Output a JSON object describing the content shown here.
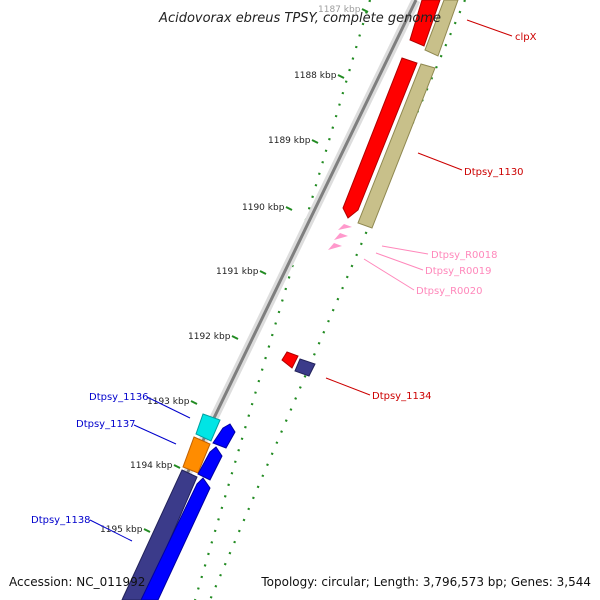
{
  "map": {
    "title": "Acidovorax ebreus TPSY, complete genome",
    "accession": "Accession: NC_011992",
    "summary": "Topology: circular; Length: 3,796,573 bp; Genes: 3,544"
  },
  "ticks": [
    "1187 kbp",
    "1188 kbp",
    "1189 kbp",
    "1190 kbp",
    "1191 kbp",
    "1192 kbp",
    "1193 kbp",
    "1194 kbp",
    "1195 kbp"
  ],
  "labels": {
    "clpX": "clpX",
    "dtpsy_1130": "Dtpsy_1130",
    "dtpsy_r0018": "Dtpsy_R0018",
    "dtpsy_r0019": "Dtpsy_R0019",
    "dtpsy_r0020": "Dtpsy_R0020",
    "dtpsy_1134": "Dtpsy_1134",
    "dtpsy_1136": "Dtpsy_1136",
    "dtpsy_1137": "Dtpsy_1137",
    "dtpsy_1138": "Dtpsy_1138"
  },
  "colors": {
    "cds": "#ff0000",
    "gene": "#c8c08a",
    "rna": "#ff99cc",
    "blue_cds": "#0000ff",
    "navy": "#3b3b8a",
    "cyan": "#00e5e5",
    "orange": "#ff8c00",
    "tick": "#228b22",
    "backbone": "#8a8a8a",
    "label_red": "#cc0000",
    "label_pink": "#ff88bb",
    "label_blue": "#0000cc"
  }
}
